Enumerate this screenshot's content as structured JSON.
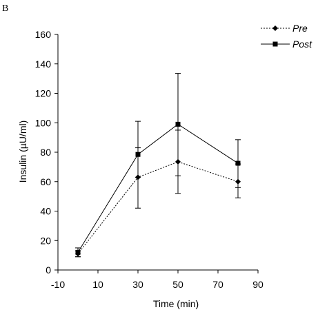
{
  "panel_label": "B",
  "chart_data": {
    "type": "line",
    "title": "",
    "xlabel": "Time (min)",
    "ylabel": "Insulin (µU/ml)",
    "xlim": [
      -10,
      90
    ],
    "ylim": [
      0,
      160
    ],
    "xticks": [
      -10,
      10,
      30,
      50,
      70,
      90
    ],
    "yticks": [
      0,
      20,
      40,
      60,
      80,
      100,
      120,
      140,
      160
    ],
    "grid": false,
    "legend_position": "top-right",
    "series": [
      {
        "name": "Pre",
        "marker": "diamond",
        "line_style": "dotted",
        "color": "#000000",
        "x": [
          0,
          30,
          50,
          80
        ],
        "y": [
          11,
          63,
          73.5,
          60
        ],
        "err_low": [
          2,
          21,
          21.5,
          11
        ],
        "err_high": [
          2,
          20,
          21.5,
          12
        ]
      },
      {
        "name": "Post",
        "marker": "square",
        "line_style": "solid",
        "color": "#000000",
        "x": [
          0,
          30,
          50,
          80
        ],
        "y": [
          12,
          78.5,
          99,
          72.5
        ],
        "err_low": [
          3,
          15.5,
          35,
          16.5
        ],
        "err_high": [
          3,
          22.5,
          34.5,
          16
        ]
      }
    ]
  }
}
